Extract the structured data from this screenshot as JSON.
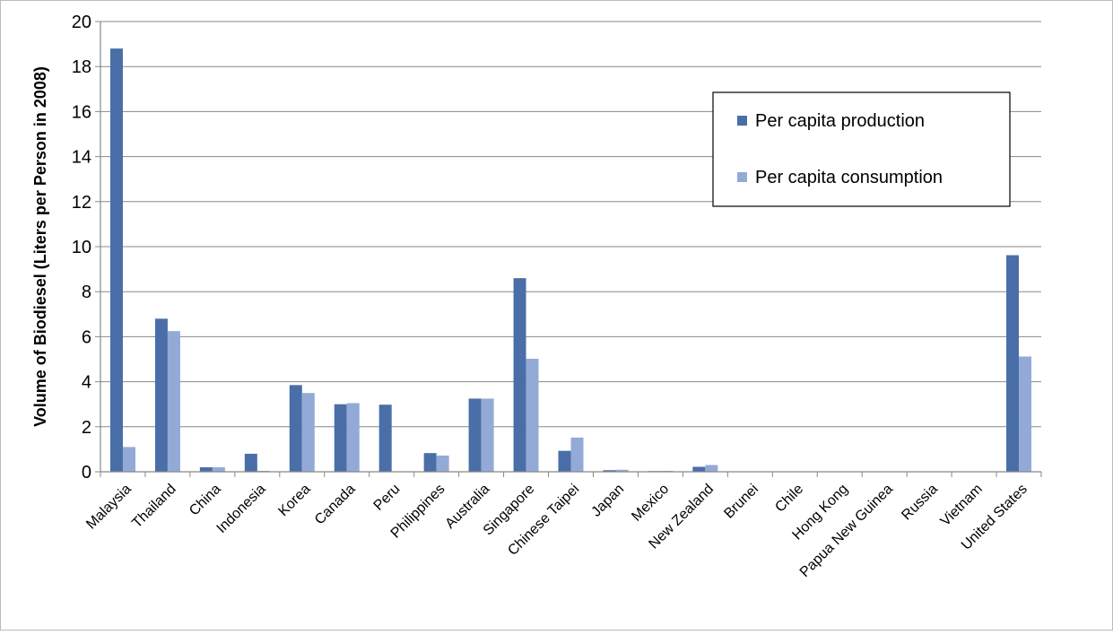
{
  "chart_data": {
    "type": "bar",
    "title": "",
    "xlabel": "",
    "ylabel": "Volume of Biodiesel (Liters per Person in 2008)",
    "ylim": [
      0,
      20
    ],
    "yticks": [
      0,
      2,
      4,
      6,
      8,
      10,
      12,
      14,
      16,
      18,
      20
    ],
    "grid": true,
    "legend_position": "top-right",
    "categories": [
      "Malaysia",
      "Thailand",
      "China",
      "Indonesia",
      "Korea",
      "Canada",
      "Peru",
      "Philippines",
      "Australia",
      "Singapore",
      "Chinese Taipei",
      "Japan",
      "Mexico",
      "New Zealand",
      "Brunei",
      "Chile",
      "Hong Kong",
      "Papua New Guinea",
      "Russia",
      "Vietnam",
      "United States"
    ],
    "series": [
      {
        "name": "Per capita production",
        "color": "#4a6ea8",
        "values": [
          18.8,
          6.8,
          0.2,
          0.8,
          3.85,
          3.0,
          2.98,
          0.83,
          3.25,
          8.6,
          0.93,
          0.07,
          0.03,
          0.22,
          0,
          0,
          0,
          0,
          0,
          0,
          9.62
        ]
      },
      {
        "name": "Per capita consumption",
        "color": "#94aad6",
        "values": [
          1.1,
          6.25,
          0.2,
          0.04,
          3.5,
          3.05,
          0,
          0.72,
          3.25,
          5.02,
          1.52,
          0.09,
          0.04,
          0.3,
          0,
          0,
          0,
          0,
          0,
          0,
          5.12
        ]
      }
    ]
  }
}
